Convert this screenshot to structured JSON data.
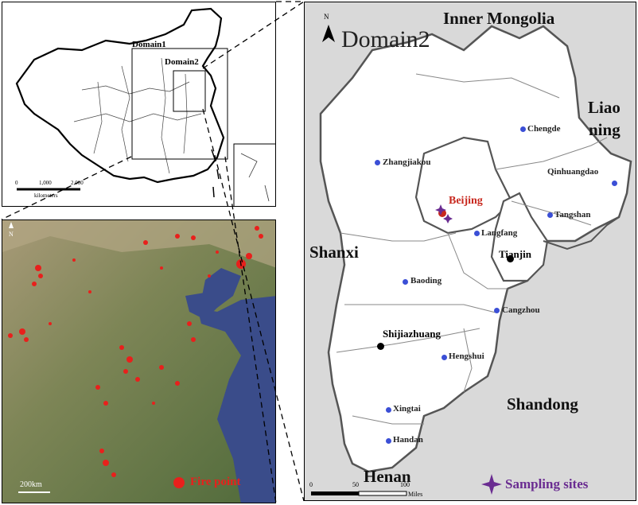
{
  "china_map": {
    "domain1_label": "Domain1",
    "domain2_label": "Domain2",
    "scale_ticks": [
      "0",
      "1,000",
      "2,000"
    ],
    "scale_unit": "kilometers"
  },
  "fire_map": {
    "north_label": "N",
    "scale_label": "200km",
    "legend_label": "Fire point",
    "fire_color": "#e8201c"
  },
  "domain2_map": {
    "title": "Domain2",
    "north_label": "N",
    "regions": {
      "inner_mongolia": "Inner Mongolia",
      "liaoning_1": "Liao",
      "liaoning_2": "ning",
      "shanxi": "Shanxi",
      "shandong": "Shandong",
      "henan": "Henan"
    },
    "cities": {
      "chengde": "Chengde",
      "zhangjiakou": "Zhangjiakou",
      "qinhuangdao": "Qinhuangdao",
      "beijing": "Beijing",
      "tangshan": "Tangshan",
      "langfang": "Langfang",
      "tianjin": "Tianjin",
      "baoding": "Baoding",
      "cangzhou": "Cangzhou",
      "shijiazhuang": "Shijiazhuang",
      "hengshui": "Hengshui",
      "xingtai": "Xingtai",
      "handan": "Handan"
    },
    "scale_ticks": [
      "0",
      "50",
      "100"
    ],
    "scale_unit": "Miles",
    "legend_label": "Sampling sites",
    "colors": {
      "city_dot": "#3b4fd6",
      "beijing": "#c8281e",
      "sampling": "#6a2c91",
      "land": "#ffffff",
      "outside": "#d9d9d9"
    }
  }
}
